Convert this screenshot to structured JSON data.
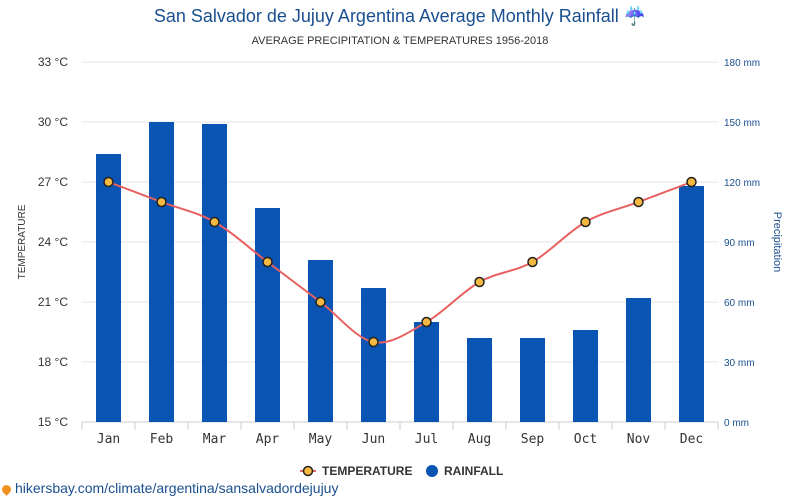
{
  "title": "San Salvador de Jujuy Argentina Average Monthly Rainfall ☔",
  "subtitle": "AVERAGE PRECIPITATION & TEMPERATURES 1956-2018",
  "source": "hikersbay.com/climate/argentina/sansalvadordejujuy",
  "colors": {
    "bar": "#0a55b3",
    "line": "#e8605f",
    "point_fill": "#f5b942",
    "point_stroke": "#222222",
    "title": "#1a4f8f"
  },
  "chart_data": {
    "type": "bar",
    "categories": [
      "Jan",
      "Feb",
      "Mar",
      "Apr",
      "May",
      "Jun",
      "Jul",
      "Aug",
      "Sep",
      "Oct",
      "Nov",
      "Dec"
    ],
    "series": [
      {
        "name": "TEMPERATURE",
        "type": "line",
        "axis": "left",
        "values": [
          27,
          26,
          25,
          23,
          21,
          19,
          20,
          22,
          23,
          25,
          26,
          27
        ]
      },
      {
        "name": "RAINFALL",
        "type": "bar",
        "axis": "right",
        "values": [
          134,
          150,
          149,
          107,
          81,
          67,
          50,
          42,
          42,
          46,
          62,
          118
        ]
      }
    ],
    "ylabel": "TEMPERATURE",
    "y2label": "Precipitation",
    "ylim": [
      15,
      33
    ],
    "y2lim": [
      0,
      180
    ],
    "yticks": [
      "15 °C",
      "18 °C",
      "21 °C",
      "24 °C",
      "27 °C",
      "30 °C",
      "33 °C"
    ],
    "y2ticks": [
      "0 mm",
      "30 mm",
      "60 mm",
      "90 mm",
      "120 mm",
      "150 mm",
      "180 mm"
    ],
    "grid": true,
    "legend_position": "bottom"
  }
}
